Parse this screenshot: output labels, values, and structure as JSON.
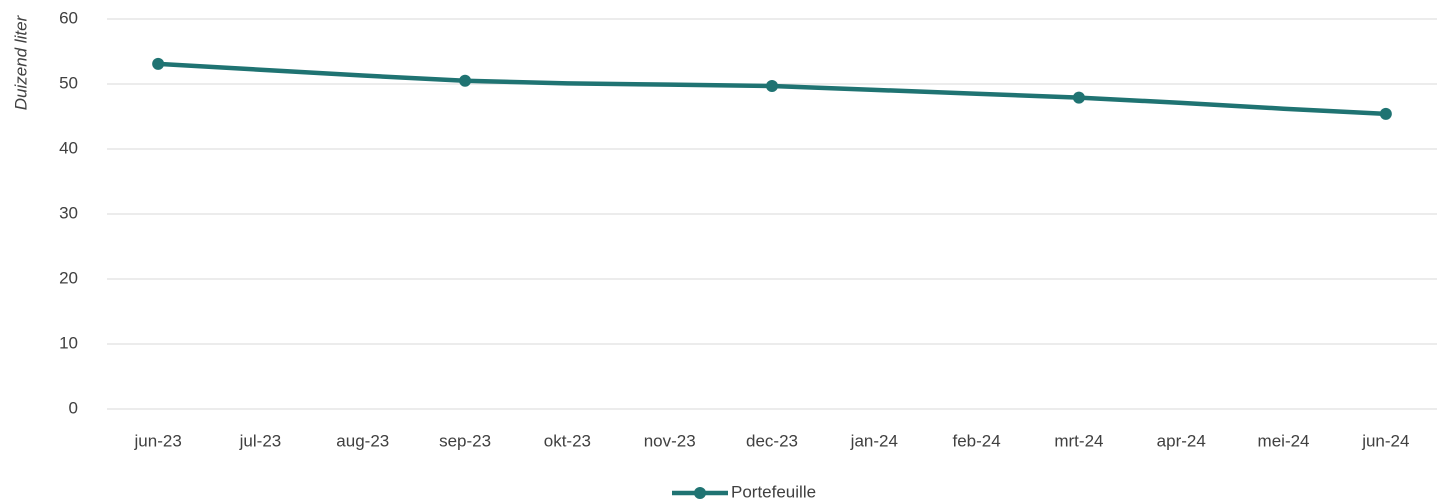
{
  "chart_data": {
    "type": "line",
    "ylabel": "Duizend liter",
    "categories": [
      "jun-23",
      "jul-23",
      "aug-23",
      "sep-23",
      "okt-23",
      "nov-23",
      "dec-23",
      "jan-24",
      "feb-24",
      "mrt-24",
      "apr-24",
      "mei-24",
      "jun-24"
    ],
    "series": [
      {
        "name": "Portefeuille",
        "color": "#1f7372",
        "values": [
          53.1,
          52.2,
          51.3,
          50.5,
          50.1,
          49.9,
          49.7,
          49.1,
          48.5,
          47.9,
          47.1,
          46.2,
          45.4
        ]
      }
    ],
    "marker_step": 3,
    "ylim": [
      0,
      60
    ],
    "yticks": [
      0,
      10,
      20,
      30,
      40,
      50,
      60
    ],
    "grid": true,
    "legend": "bottom"
  }
}
